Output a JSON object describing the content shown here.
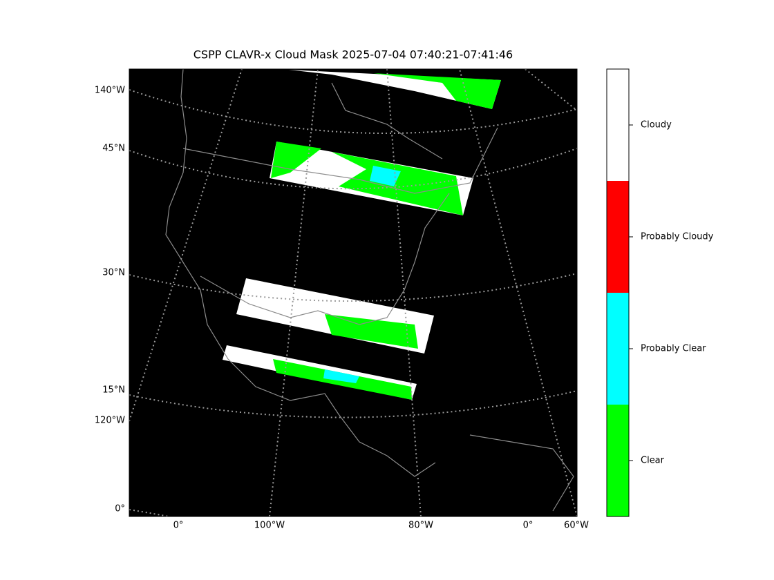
{
  "title": "CSPP CLAVR-x Cloud Mask 2025-07-04 07:40:21-07:41:46",
  "left_labels": [
    "140°W",
    "45°N",
    "30°N",
    "15°N",
    "120°W",
    "0°"
  ],
  "bottom_labels": [
    "0°",
    "100°W",
    "80°W",
    "0°",
    "60°W"
  ],
  "colorbar": {
    "classes": [
      {
        "label": "Cloudy",
        "color": "#ffffff"
      },
      {
        "label": "Probably Cloudy",
        "color": "#ff0000"
      },
      {
        "label": "Probably Clear",
        "color": "#00ffff"
      },
      {
        "label": "Clear",
        "color": "#00ff00"
      }
    ]
  }
}
